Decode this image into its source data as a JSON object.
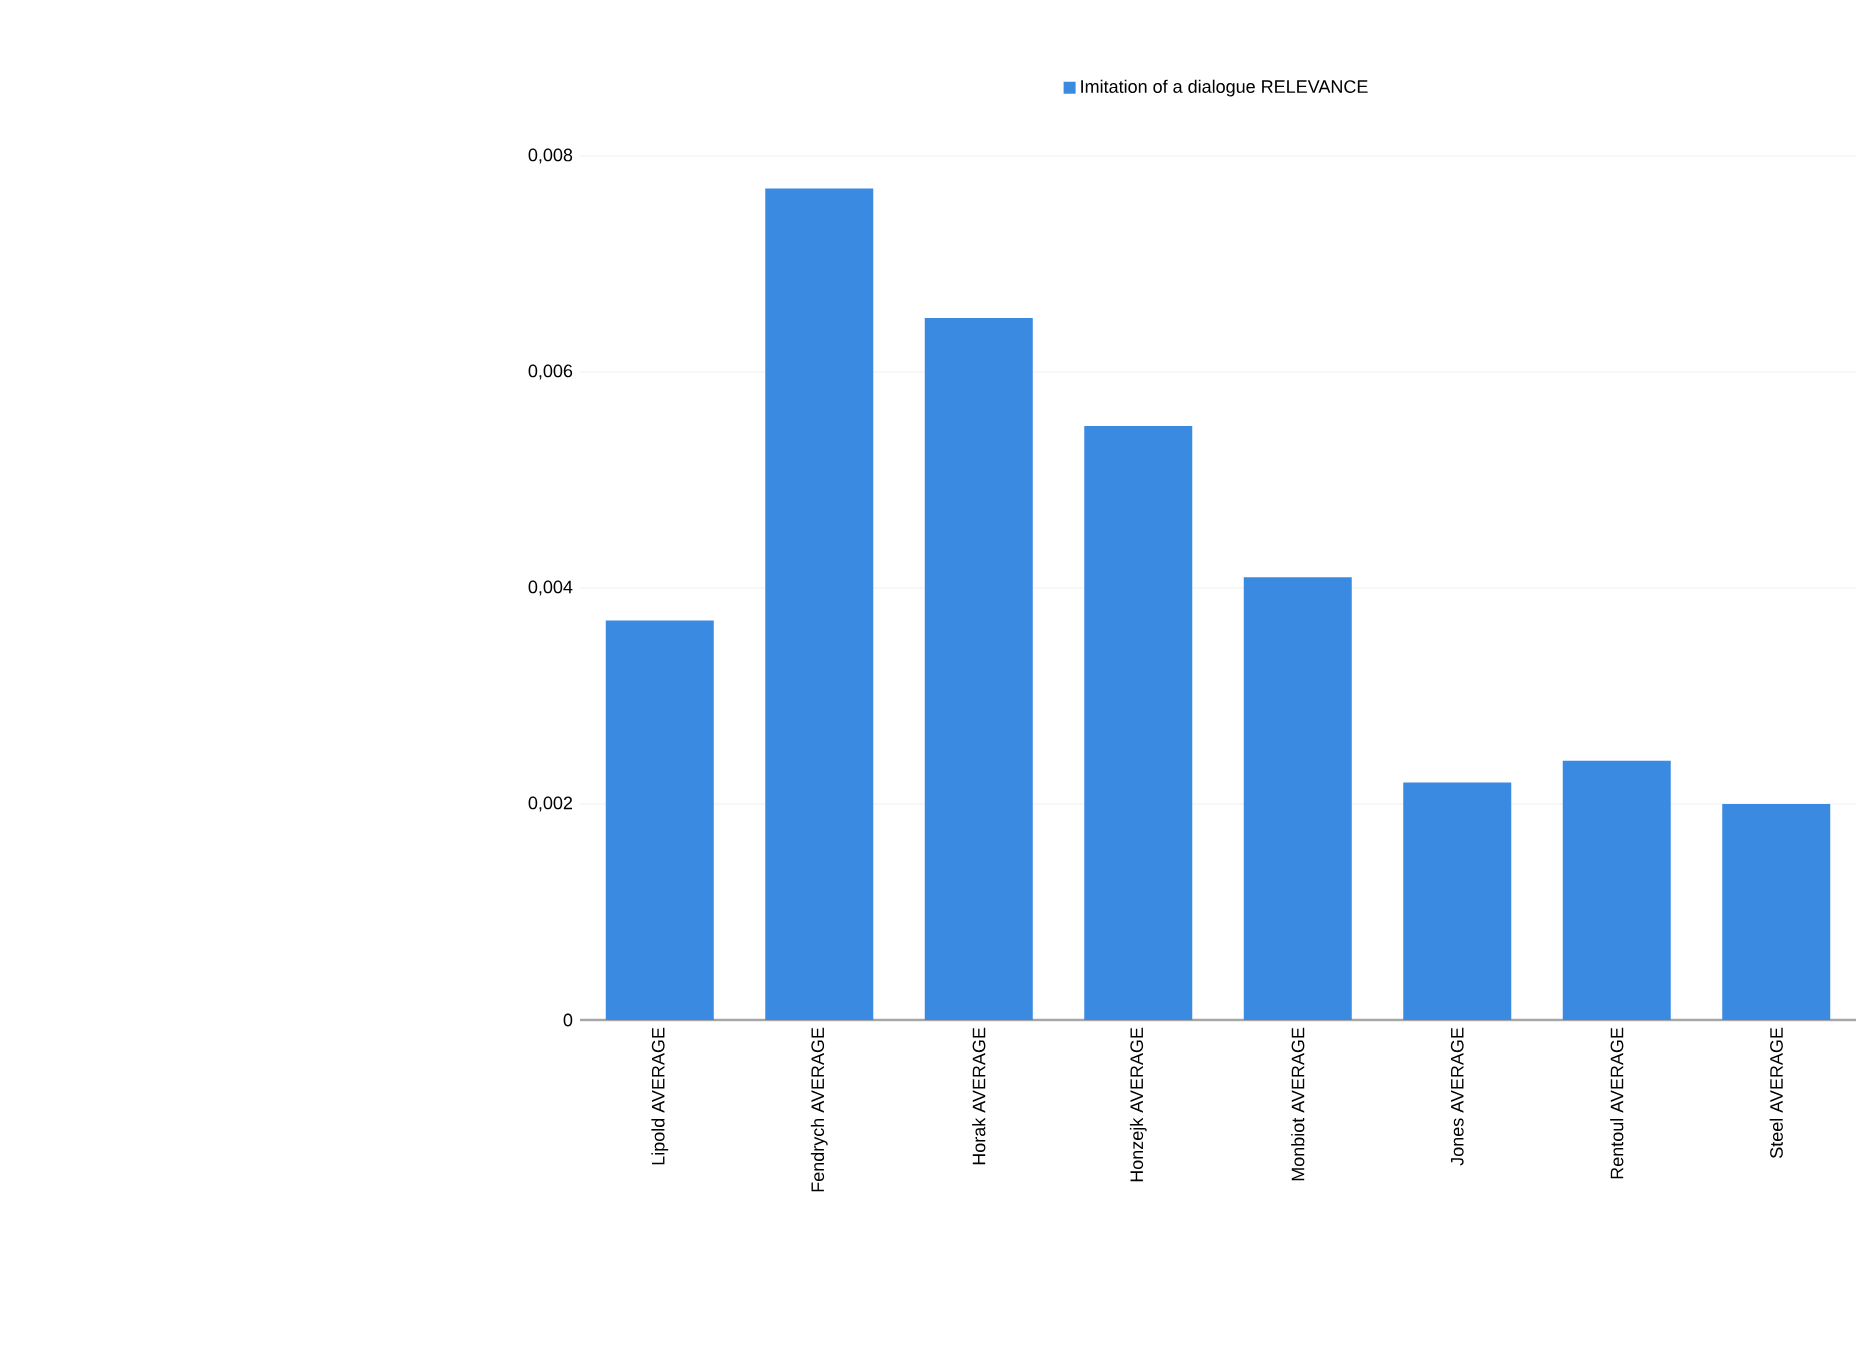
{
  "chart_data": {
    "type": "bar",
    "categories": [
      "Lipold AVERAGE",
      "Fendrych AVERAGE",
      "Horak AVERAGE",
      "Honzejk AVERAGE",
      "Monbiot AVERAGE",
      "Jones AVERAGE",
      "Rentoul AVERAGE",
      "Steel AVERAGE"
    ],
    "series": [
      {
        "name": "Imitation of a dialogue RELEVANCE",
        "color": "#3a8ae2",
        "values": [
          0.0037,
          0.0077,
          0.0065,
          0.0055,
          0.0041,
          0.0022,
          0.0024,
          0.002
        ]
      }
    ],
    "ylim": [
      0,
      0.008
    ],
    "yticks": [
      0,
      {
        "value": 0.002,
        "label": "0,002"
      },
      {
        "value": 0.004,
        "label": "0,004"
      },
      {
        "value": 0.006,
        "label": "0,006"
      },
      {
        "value": 0.008,
        "label": "0,008"
      }
    ],
    "grid": "y",
    "legend": "top"
  }
}
